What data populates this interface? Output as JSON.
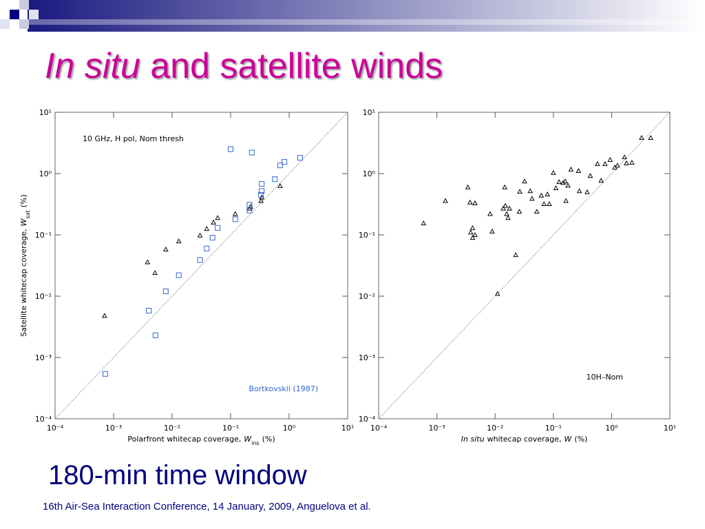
{
  "slide": {
    "title_italic": "In situ",
    "title_rest": "and satellite winds",
    "subtitle": "180-min time window",
    "footer": "16th Air-Sea Interaction Conference, 14 January, 2009, Anguelova et al."
  },
  "chart_data": [
    {
      "type": "scatter",
      "annotation": "10 GHz, H pol, Nom thresh",
      "xlabel": [
        {
          "text": "Polarfront whitecap coverage,",
          "style": "normal"
        },
        {
          "text": "W",
          "style": "italic"
        },
        {
          "text": "ins",
          "style": "sub"
        },
        {
          "text": "(%)",
          "style": "normal"
        }
      ],
      "ylabel": [
        {
          "text": "Satellite whitecap coverage,",
          "style": "normal"
        },
        {
          "text": "W",
          "style": "italic"
        },
        {
          "text": "sat",
          "style": "sub"
        },
        {
          "text": "(%)",
          "style": "normal"
        }
      ],
      "log_x": true,
      "log_y": true,
      "identity_line": true,
      "legend": "lower right",
      "xlim": [
        0.0001,
        10
      ],
      "ylim": [
        0.0001,
        10
      ],
      "xticks": [
        {
          "value": 0.0001,
          "label": "10⁻⁴"
        },
        {
          "value": 0.001,
          "label": "10⁻³"
        },
        {
          "value": 0.01,
          "label": "10⁻²"
        },
        {
          "value": 0.1,
          "label": "10⁻¹"
        },
        {
          "value": 1,
          "label": "10⁰"
        },
        {
          "value": 10,
          "label": "10¹"
        }
      ],
      "yticks": [
        {
          "value": 0.0001,
          "label": "10⁻⁴"
        },
        {
          "value": 0.001,
          "label": "10⁻³"
        },
        {
          "value": 0.01,
          "label": "10⁻²"
        },
        {
          "value": 0.1,
          "label": "10⁻¹"
        },
        {
          "value": 1,
          "label": "10⁰"
        },
        {
          "value": 10,
          "label": "10¹"
        }
      ],
      "series": [
        {
          "color": "#000000",
          "marker": "triangle",
          "x": [
            0.0007,
            0.0038,
            0.0051,
            0.0078,
            0.013,
            0.03,
            0.039,
            0.051,
            0.06,
            0.12,
            0.21,
            0.22,
            0.33,
            0.34,
            0.7
          ],
          "values": [
            0.0048,
            0.036,
            0.024,
            0.058,
            0.079,
            0.098,
            0.126,
            0.16,
            0.19,
            0.22,
            0.27,
            0.29,
            0.36,
            0.41,
            0.63
          ]
        },
        {
          "name": "Bortkovskii (1987)",
          "color": "#3366cc",
          "marker": "square",
          "x": [
            0.00072,
            0.004,
            0.0052,
            0.0078,
            0.013,
            0.03,
            0.039,
            0.049,
            0.06,
            0.1,
            0.12,
            0.21,
            0.21,
            0.23,
            0.33,
            0.34,
            0.34,
            0.57,
            0.7,
            0.83,
            1.54
          ],
          "values": [
            0.00054,
            0.0058,
            0.0023,
            0.012,
            0.022,
            0.039,
            0.06,
            0.09,
            0.13,
            2.5,
            0.18,
            0.31,
            0.25,
            2.2,
            0.45,
            0.68,
            0.52,
            0.81,
            1.36,
            1.55,
            1.81
          ]
        }
      ]
    },
    {
      "type": "scatter",
      "annotation": "10H–Nom",
      "xlabel": [
        {
          "text": "In situ",
          "style": "italic"
        },
        {
          "text": "whitecap coverage,",
          "style": "normal"
        },
        {
          "text": "W",
          "style": "italic"
        },
        {
          "text": "(%)",
          "style": "normal"
        }
      ],
      "log_x": true,
      "log_y": true,
      "identity_line": true,
      "xlim": [
        0.0001,
        10
      ],
      "ylim": [
        0.0001,
        10
      ],
      "xticks": [
        {
          "value": 0.0001,
          "label": "10⁻⁴"
        },
        {
          "value": 0.001,
          "label": "10⁻³"
        },
        {
          "value": 0.01,
          "label": "10⁻²"
        },
        {
          "value": 0.1,
          "label": "10⁻¹"
        },
        {
          "value": 1,
          "label": "10⁰"
        },
        {
          "value": 10,
          "label": "10¹"
        }
      ],
      "yticks": [
        {
          "value": 0.0001,
          "label": "10⁻⁴"
        },
        {
          "value": 0.001,
          "label": "10⁻³"
        },
        {
          "value": 0.01,
          "label": "10⁻²"
        },
        {
          "value": 0.1,
          "label": "10⁻¹"
        },
        {
          "value": 1,
          "label": "10⁰"
        },
        {
          "value": 10,
          "label": "10¹"
        }
      ],
      "series": [
        {
          "color": "#000000",
          "marker": "triangle",
          "x": [
            0.011,
            0.0225,
            0.00059,
            0.0014,
            0.0034,
            0.0037,
            0.0045,
            0.0041,
            0.0045,
            0.0038,
            0.0041,
            0.0089,
            0.0082,
            0.0138,
            0.015,
            0.0158,
            0.0176,
            0.0167,
            0.026,
            0.0146,
            0.0265,
            0.032,
            0.04,
            0.043,
            0.052,
            0.062,
            0.069,
            0.079,
            0.085,
            0.1,
            0.11,
            0.125,
            0.147,
            0.16,
            0.164,
            0.178,
            0.2,
            0.27,
            0.28,
            0.38,
            0.43,
            0.57,
            0.66,
            0.77,
            0.94,
            1.13,
            1.26,
            1.66,
            1.8,
            2.23,
            3.27,
            4.67
          ],
          "values": [
            0.011,
            0.047,
            0.155,
            0.36,
            0.6,
            0.34,
            0.33,
            0.13,
            0.1,
            0.11,
            0.09,
            0.114,
            0.22,
            0.27,
            0.3,
            0.22,
            0.27,
            0.19,
            0.24,
            0.6,
            0.51,
            0.75,
            0.52,
            0.39,
            0.24,
            0.44,
            0.32,
            0.46,
            0.32,
            1.03,
            0.58,
            0.73,
            0.71,
            0.75,
            0.36,
            0.64,
            1.17,
            1.11,
            0.52,
            0.5,
            0.92,
            1.44,
            0.77,
            1.44,
            1.68,
            1.26,
            1.36,
            1.86,
            1.48,
            1.51,
            3.84,
            3.84
          ]
        }
      ]
    }
  ]
}
